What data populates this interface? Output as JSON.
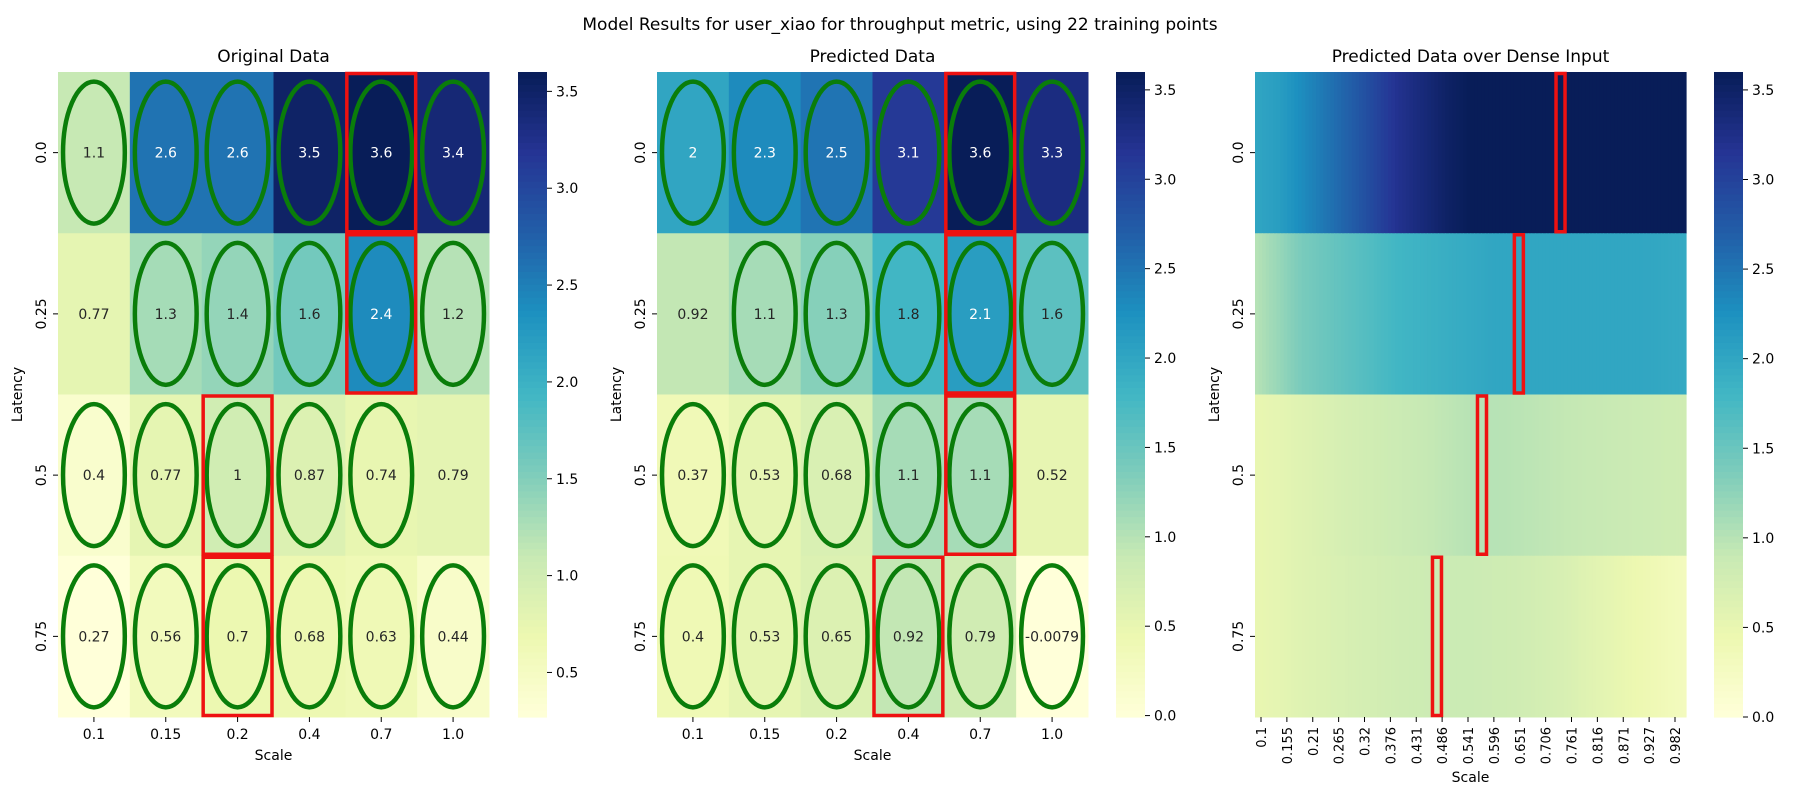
{
  "figure_title": "Model Results for user_xiao for throughput metric, using 22 training points",
  "chart_data": [
    {
      "type": "heatmap",
      "title": "Original Data",
      "xlabel": "Scale",
      "ylabel": "Latency",
      "x_categories": [
        "0.1",
        "0.15",
        "0.2",
        "0.4",
        "0.7",
        "1.0"
      ],
      "y_categories": [
        "0.0",
        "0.25",
        "0.5",
        "0.75"
      ],
      "values": [
        [
          1.1,
          2.6,
          2.6,
          3.5,
          3.6,
          3.4
        ],
        [
          0.77,
          1.3,
          1.4,
          1.6,
          2.4,
          1.2
        ],
        [
          0.4,
          0.77,
          1.0,
          0.87,
          0.74,
          0.79
        ],
        [
          0.27,
          0.56,
          0.7,
          0.68,
          0.63,
          0.44
        ]
      ],
      "cell_labels": [
        [
          "1.1",
          "2.6",
          "2.6",
          "3.5",
          "3.6",
          "3.4"
        ],
        [
          "0.77",
          "1.3",
          "1.4",
          "1.6",
          "2.4",
          "1.2"
        ],
        [
          "0.4",
          "0.77",
          "1",
          "0.87",
          "0.74",
          "0.79"
        ],
        [
          "0.27",
          "0.56",
          "0.7",
          "0.68",
          "0.63",
          "0.44"
        ]
      ],
      "color_range": [
        0.27,
        3.6
      ],
      "colorbar_ticks": [
        "0.5",
        "1.0",
        "1.5",
        "2.0",
        "2.5",
        "3.0",
        "3.5"
      ],
      "colorbar_tick_values": [
        0.5,
        1.0,
        1.5,
        2.0,
        2.5,
        3.0,
        3.5
      ],
      "training_points": [
        [
          0,
          0
        ],
        [
          0,
          1
        ],
        [
          0,
          2
        ],
        [
          0,
          3
        ],
        [
          0,
          4
        ],
        [
          0,
          5
        ],
        [
          1,
          1
        ],
        [
          1,
          2
        ],
        [
          1,
          3
        ],
        [
          1,
          4
        ],
        [
          1,
          5
        ],
        [
          2,
          0
        ],
        [
          2,
          1
        ],
        [
          2,
          2
        ],
        [
          2,
          3
        ],
        [
          2,
          4
        ],
        [
          3,
          0
        ],
        [
          3,
          1
        ],
        [
          3,
          2
        ],
        [
          3,
          3
        ],
        [
          3,
          4
        ],
        [
          3,
          5
        ]
      ],
      "max_per_row": [
        4,
        4,
        2,
        2
      ],
      "colormap": "YlGnBu"
    },
    {
      "type": "heatmap",
      "title": "Predicted Data",
      "xlabel": "Scale",
      "ylabel": "Latency",
      "x_categories": [
        "0.1",
        "0.15",
        "0.2",
        "0.4",
        "0.7",
        "1.0"
      ],
      "y_categories": [
        "0.0",
        "0.25",
        "0.5",
        "0.75"
      ],
      "values": [
        [
          2.0,
          2.3,
          2.5,
          3.1,
          3.6,
          3.3
        ],
        [
          0.92,
          1.1,
          1.3,
          1.8,
          2.1,
          1.6
        ],
        [
          0.37,
          0.53,
          0.68,
          1.1,
          1.1,
          0.52
        ],
        [
          0.4,
          0.53,
          0.65,
          0.92,
          0.79,
          -0.0079
        ]
      ],
      "cell_labels": [
        [
          "2",
          "2.3",
          "2.5",
          "3.1",
          "3.6",
          "3.3"
        ],
        [
          "0.92",
          "1.1",
          "1.3",
          "1.8",
          "2.1",
          "1.6"
        ],
        [
          "0.37",
          "0.53",
          "0.68",
          "1.1",
          "1.1",
          "0.52"
        ],
        [
          "0.4",
          "0.53",
          "0.65",
          "0.92",
          "0.79",
          "-0.0079"
        ]
      ],
      "color_range": [
        -0.0079,
        3.6
      ],
      "colorbar_ticks": [
        "0.0",
        "0.5",
        "1.0",
        "1.5",
        "2.0",
        "2.5",
        "3.0",
        "3.5"
      ],
      "colorbar_tick_values": [
        0.0,
        0.5,
        1.0,
        1.5,
        2.0,
        2.5,
        3.0,
        3.5
      ],
      "training_points": [
        [
          0,
          0
        ],
        [
          0,
          1
        ],
        [
          0,
          2
        ],
        [
          0,
          3
        ],
        [
          0,
          4
        ],
        [
          0,
          5
        ],
        [
          1,
          1
        ],
        [
          1,
          2
        ],
        [
          1,
          3
        ],
        [
          1,
          4
        ],
        [
          1,
          5
        ],
        [
          2,
          0
        ],
        [
          2,
          1
        ],
        [
          2,
          2
        ],
        [
          2,
          3
        ],
        [
          2,
          4
        ],
        [
          3,
          0
        ],
        [
          3,
          1
        ],
        [
          3,
          2
        ],
        [
          3,
          3
        ],
        [
          3,
          4
        ],
        [
          3,
          5
        ]
      ],
      "max_per_row": [
        4,
        4,
        4,
        3
      ],
      "colormap": "YlGnBu"
    },
    {
      "type": "heatmap",
      "title": "Predicted Data over Dense Input",
      "xlabel": "Scale",
      "ylabel": "Latency",
      "x_tick_labels": [
        "0.1",
        "0.155",
        "0.21",
        "0.265",
        "0.32",
        "0.376",
        "0.431",
        "0.486",
        "0.541",
        "0.596",
        "0.651",
        "0.706",
        "0.761",
        "0.816",
        "0.871",
        "0.927",
        "0.982"
      ],
      "y_categories": [
        "0.0",
        "0.25",
        "0.5",
        "0.75"
      ],
      "x_range": [
        0.1,
        1.0
      ],
      "dense_profile_x": [
        0.1,
        0.15,
        0.2,
        0.3,
        0.4,
        0.5,
        0.55,
        0.6,
        0.65,
        0.7,
        0.75,
        0.8,
        0.9,
        1.0
      ],
      "dense_profile_values": [
        [
          2.0,
          2.1,
          2.3,
          2.7,
          3.2,
          3.5,
          3.6,
          3.6,
          3.6,
          3.6,
          3.6,
          3.6,
          3.6,
          3.6
        ],
        [
          1.0,
          1.2,
          1.4,
          1.6,
          1.8,
          1.9,
          1.95,
          2.0,
          2.0,
          2.0,
          2.0,
          2.0,
          2.0,
          1.95
        ],
        [
          0.5,
          0.55,
          0.62,
          0.75,
          0.85,
          0.95,
          1.0,
          1.0,
          0.98,
          0.95,
          0.92,
          0.9,
          0.85,
          0.8
        ],
        [
          0.5,
          0.55,
          0.62,
          0.72,
          0.8,
          0.85,
          0.85,
          0.82,
          0.8,
          0.75,
          0.7,
          0.6,
          0.45,
          0.3
        ]
      ],
      "max_locations_x": [
        0.738,
        0.651,
        0.574,
        0.48
      ],
      "color_range": [
        0.0,
        3.6
      ],
      "colorbar_ticks": [
        "0.0",
        "0.5",
        "1.0",
        "1.5",
        "2.0",
        "2.5",
        "3.0",
        "3.5"
      ],
      "colorbar_tick_values": [
        0.0,
        0.5,
        1.0,
        1.5,
        2.0,
        2.5,
        3.0,
        3.5
      ],
      "colormap": "YlGnBu"
    }
  ],
  "colors": {
    "training_ring": "#0a7d0a",
    "max_box": "#ee1111",
    "text_dark": "#262626",
    "text_light": "#ffffff",
    "colormap_stops": [
      "#ffffd9",
      "#edf8b1",
      "#c7e9b4",
      "#7fcdbb",
      "#41b6c4",
      "#1d91c0",
      "#225ea8",
      "#253494",
      "#081d58"
    ]
  }
}
